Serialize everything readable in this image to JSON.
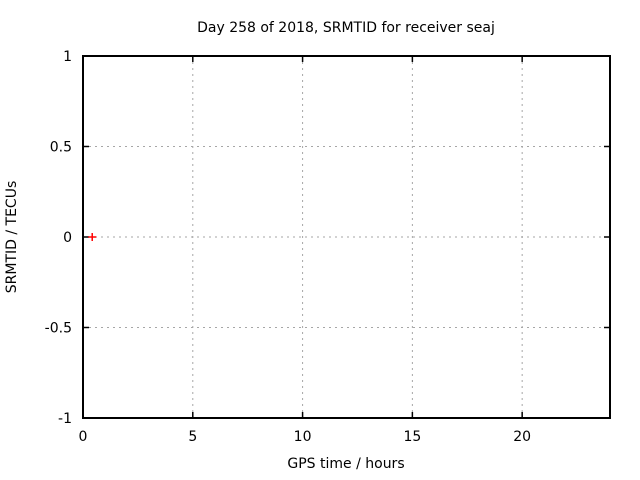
{
  "chart_data": {
    "type": "scatter",
    "title": "Day 258 of 2018, SRMTID for receiver seaj",
    "xlabel": "GPS time / hours",
    "ylabel": "SRMTID / TECUs",
    "xlim": [
      0,
      24
    ],
    "ylim": [
      -1,
      1
    ],
    "xticks": [
      0,
      5,
      10,
      15,
      20
    ],
    "yticks": [
      -1,
      -0.5,
      0,
      0.5,
      1
    ],
    "grid": true,
    "legend": "none",
    "series": [
      {
        "marker": "plus",
        "color": "#ff0000",
        "points": [
          {
            "x": 0.42,
            "y": 0.0
          }
        ]
      }
    ]
  },
  "colors": {
    "background": "#ffffff",
    "axis": "#000000",
    "grid": "#a6a6a6",
    "text": "#000000",
    "marker": "#ff0000"
  }
}
